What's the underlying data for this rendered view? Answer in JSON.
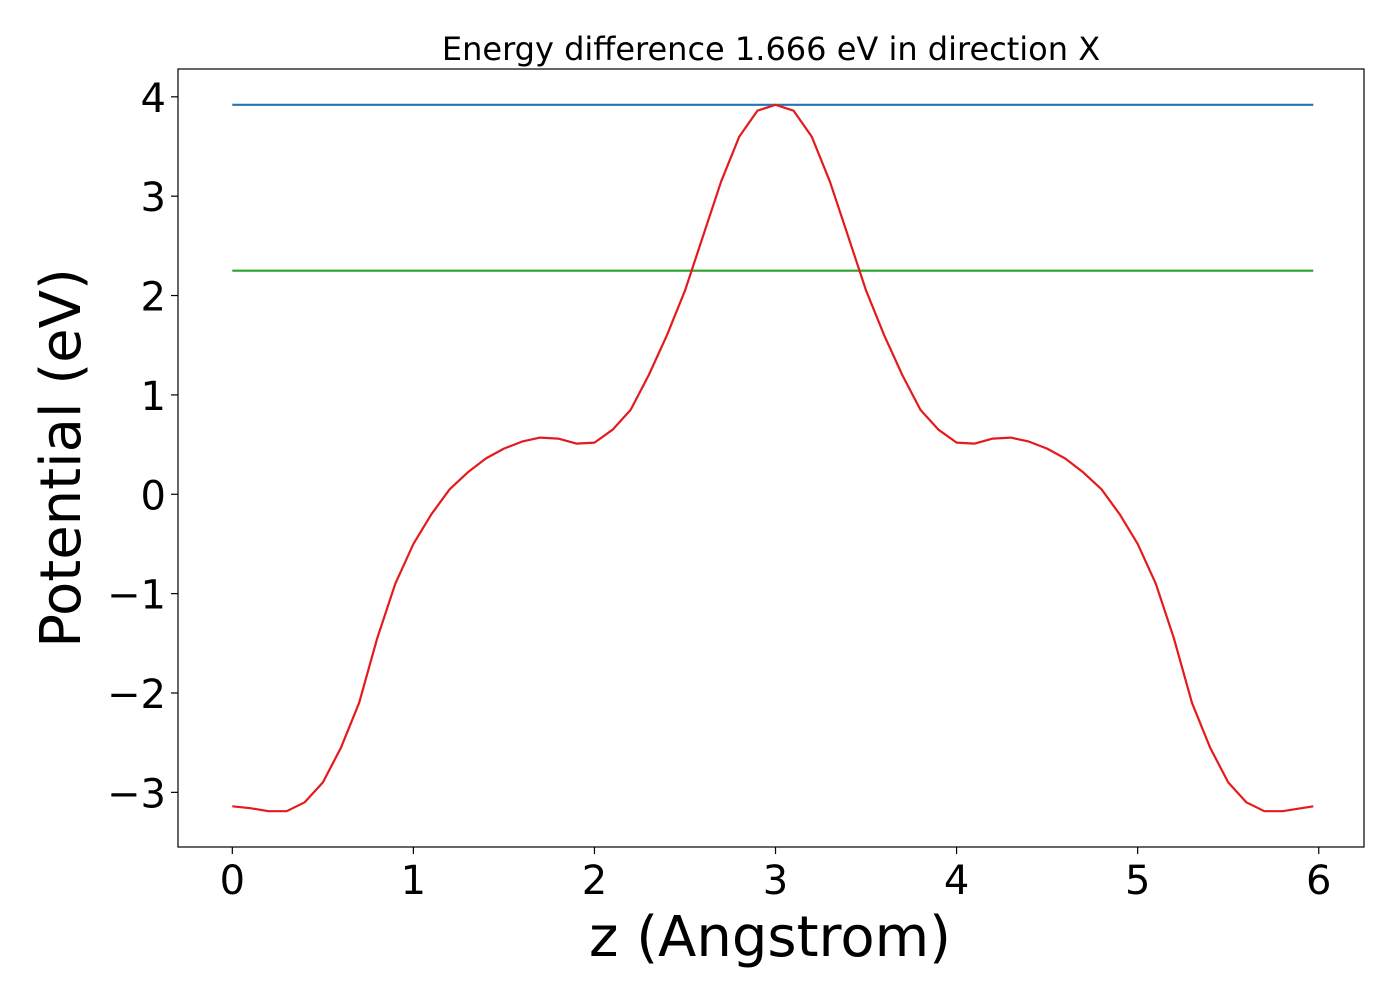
{
  "chart_data": {
    "type": "line",
    "title": "Energy difference 1.666 eV in direction X",
    "xlabel": "z (Angstrom)",
    "ylabel": "Potential (eV)",
    "xlim": [
      -0.3,
      6.25
    ],
    "ylim": [
      -3.55,
      4.28
    ],
    "xticks": [
      0,
      1,
      2,
      3,
      4,
      5,
      6
    ],
    "xtick_labels": [
      "0",
      "1",
      "2",
      "3",
      "4",
      "5",
      "6"
    ],
    "yticks": [
      -3,
      -2,
      -1,
      0,
      1,
      2,
      3,
      4
    ],
    "ytick_labels": [
      "−3",
      "−2",
      "−1",
      "0",
      "1",
      "2",
      "3",
      "4"
    ],
    "grid": false,
    "series": [
      {
        "color": "#1f77b4",
        "x": [
          0,
          5.97
        ],
        "y": [
          3.92,
          3.92
        ]
      },
      {
        "color": "#2ca02c",
        "x": [
          0,
          5.97
        ],
        "y": [
          2.25,
          2.25
        ]
      },
      {
        "color": "#e41a1c",
        "x": [
          0,
          0.1,
          0.2,
          0.3,
          0.4,
          0.5,
          0.6,
          0.7,
          0.8,
          0.9,
          1.0,
          1.1,
          1.2,
          1.3,
          1.4,
          1.5,
          1.6,
          1.7,
          1.8,
          1.9,
          2.0,
          2.1,
          2.2,
          2.3,
          2.4,
          2.5,
          2.6,
          2.7,
          2.8,
          2.9,
          3.0,
          3.1,
          3.2,
          3.3,
          3.4,
          3.5,
          3.6,
          3.7,
          3.8,
          3.9,
          4.0,
          4.1,
          4.2,
          4.3,
          4.4,
          4.5,
          4.6,
          4.7,
          4.8,
          4.9,
          5.0,
          5.1,
          5.2,
          5.3,
          5.4,
          5.5,
          5.6,
          5.7,
          5.8,
          5.97
        ],
        "y": [
          -3.14,
          -3.16,
          -3.19,
          -3.19,
          -3.1,
          -2.9,
          -2.55,
          -2.1,
          -1.45,
          -0.9,
          -0.5,
          -0.2,
          0.05,
          0.22,
          0.36,
          0.46,
          0.53,
          0.57,
          0.56,
          0.51,
          0.52,
          0.65,
          0.85,
          1.2,
          1.6,
          2.05,
          2.6,
          3.15,
          3.6,
          3.86,
          3.92,
          3.86,
          3.6,
          3.15,
          2.6,
          2.05,
          1.6,
          1.2,
          0.85,
          0.65,
          0.52,
          0.51,
          0.56,
          0.57,
          0.53,
          0.46,
          0.36,
          0.22,
          0.05,
          -0.2,
          -0.5,
          -0.9,
          -1.45,
          -2.1,
          -2.55,
          -2.9,
          -3.1,
          -3.19,
          -3.19,
          -3.14
        ]
      }
    ]
  }
}
